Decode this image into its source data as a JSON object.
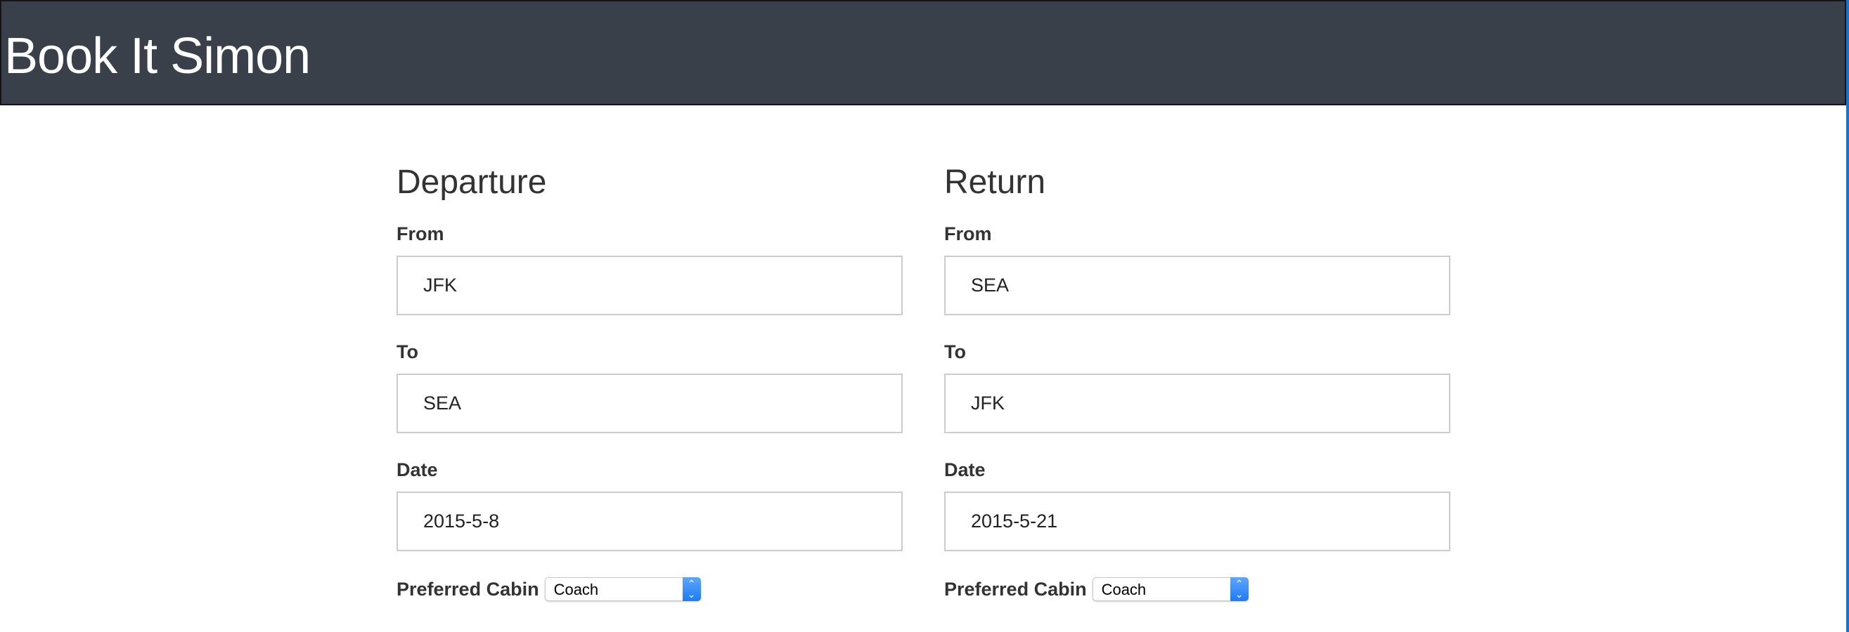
{
  "header": {
    "title": "Book It Simon"
  },
  "departure": {
    "heading": "Departure",
    "from_label": "From",
    "from_value": "JFK",
    "to_label": "To",
    "to_value": "SEA",
    "date_label": "Date",
    "date_value": "2015-5-8",
    "cabin_label": "Preferred Cabin",
    "cabin_value": "Coach"
  },
  "return": {
    "heading": "Return",
    "from_label": "From",
    "from_value": "SEA",
    "to_label": "To",
    "to_value": "JFK",
    "date_label": "Date",
    "date_value": "2015-5-21",
    "cabin_label": "Preferred Cabin",
    "cabin_value": "Coach"
  },
  "colors": {
    "header_bg": "#3a4049",
    "select_accent": "#1c7cf6"
  }
}
